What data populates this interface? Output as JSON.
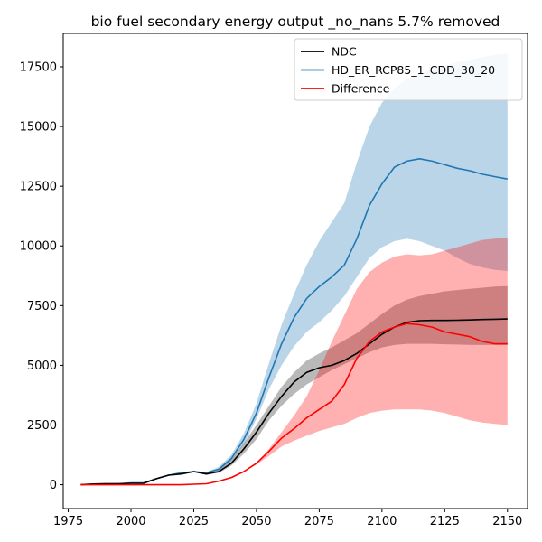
{
  "chart_data": {
    "type": "line",
    "title": "bio fuel secondary energy output _no_nans 5.7% removed",
    "xlabel": "",
    "ylabel": "",
    "xlim": [
      1973,
      2158
    ],
    "ylim": [
      -1000,
      18900
    ],
    "xticks": [
      1975,
      2000,
      2025,
      2050,
      2075,
      2100,
      2125,
      2150
    ],
    "yticks": [
      0,
      2500,
      5000,
      7500,
      10000,
      12500,
      15000,
      17500
    ],
    "grid": false,
    "legend_position": "top-right",
    "x": [
      1980,
      1985,
      1990,
      1995,
      2000,
      2005,
      2010,
      2015,
      2020,
      2025,
      2030,
      2035,
      2040,
      2045,
      2050,
      2055,
      2060,
      2065,
      2070,
      2075,
      2080,
      2085,
      2090,
      2095,
      2100,
      2105,
      2110,
      2115,
      2120,
      2125,
      2130,
      2135,
      2140,
      2145,
      2150
    ],
    "series": [
      {
        "name": "NDC",
        "color": "#000000",
        "band_color": "#808080",
        "values": [
          0,
          30,
          40,
          40,
          60,
          60,
          250,
          400,
          450,
          550,
          450,
          550,
          900,
          1500,
          2200,
          3000,
          3700,
          4300,
          4700,
          4900,
          5000,
          5200,
          5500,
          5900,
          6300,
          6600,
          6800,
          6870,
          6880,
          6880,
          6890,
          6900,
          6920,
          6930,
          6940
        ],
        "upper": [
          0,
          30,
          40,
          40,
          60,
          60,
          250,
          400,
          450,
          550,
          500,
          650,
          1050,
          1750,
          2500,
          3300,
          4100,
          4700,
          5200,
          5500,
          5750,
          6050,
          6350,
          6750,
          7150,
          7500,
          7750,
          7900,
          8000,
          8100,
          8150,
          8200,
          8250,
          8300,
          8320
        ],
        "lower": [
          0,
          30,
          40,
          40,
          60,
          60,
          250,
          400,
          450,
          550,
          420,
          500,
          800,
          1300,
          1900,
          2700,
          3300,
          3800,
          4200,
          4500,
          4800,
          5050,
          5300,
          5550,
          5750,
          5850,
          5900,
          5900,
          5900,
          5880,
          5870,
          5860,
          5850,
          5850,
          5850
        ]
      },
      {
        "name": "HD_ER_RCP85_1_CDD_30_20",
        "color": "#1f77b4",
        "band_color": "#1f77b4",
        "values": [
          0,
          30,
          40,
          40,
          80,
          80,
          250,
          400,
          500,
          550,
          500,
          650,
          1100,
          1900,
          3000,
          4500,
          5900,
          7000,
          7800,
          8300,
          8700,
          9200,
          10300,
          11700,
          12600,
          13300,
          13550,
          13650,
          13550,
          13400,
          13250,
          13150,
          13000,
          12900,
          12800
        ],
        "upper": [
          0,
          30,
          40,
          40,
          80,
          80,
          250,
          400,
          500,
          570,
          520,
          750,
          1250,
          2150,
          3400,
          5100,
          6700,
          8000,
          9200,
          10200,
          11000,
          11800,
          13500,
          15000,
          16000,
          16600,
          17000,
          17200,
          17400,
          17550,
          17700,
          17800,
          17900,
          18000,
          18050
        ],
        "lower": [
          0,
          30,
          40,
          40,
          80,
          80,
          250,
          400,
          500,
          530,
          480,
          600,
          1000,
          1700,
          2750,
          4000,
          5000,
          5800,
          6400,
          6800,
          7300,
          7900,
          8700,
          9500,
          9950,
          10200,
          10300,
          10200,
          10000,
          9800,
          9500,
          9250,
          9100,
          9000,
          8950
        ]
      },
      {
        "name": "Difference",
        "color": "#ff0000",
        "band_color": "#ff0000",
        "values": [
          0,
          0,
          0,
          0,
          0,
          0,
          0,
          0,
          0,
          20,
          40,
          150,
          300,
          550,
          900,
          1400,
          1950,
          2350,
          2800,
          3150,
          3500,
          4200,
          5300,
          6000,
          6400,
          6600,
          6750,
          6700,
          6600,
          6400,
          6300,
          6200,
          6000,
          5900,
          5900
        ],
        "upper": [
          0,
          0,
          0,
          0,
          0,
          0,
          0,
          0,
          0,
          20,
          40,
          150,
          300,
          550,
          900,
          1500,
          2200,
          2900,
          3700,
          4800,
          6000,
          7100,
          8200,
          8900,
          9300,
          9550,
          9650,
          9600,
          9650,
          9800,
          9950,
          10100,
          10250,
          10300,
          10350
        ],
        "lower": [
          0,
          0,
          0,
          0,
          0,
          0,
          0,
          0,
          0,
          20,
          40,
          150,
          300,
          550,
          850,
          1200,
          1600,
          1850,
          2050,
          2250,
          2400,
          2550,
          2800,
          3000,
          3100,
          3150,
          3150,
          3150,
          3100,
          3000,
          2850,
          2700,
          2600,
          2550,
          2500
        ]
      }
    ]
  }
}
